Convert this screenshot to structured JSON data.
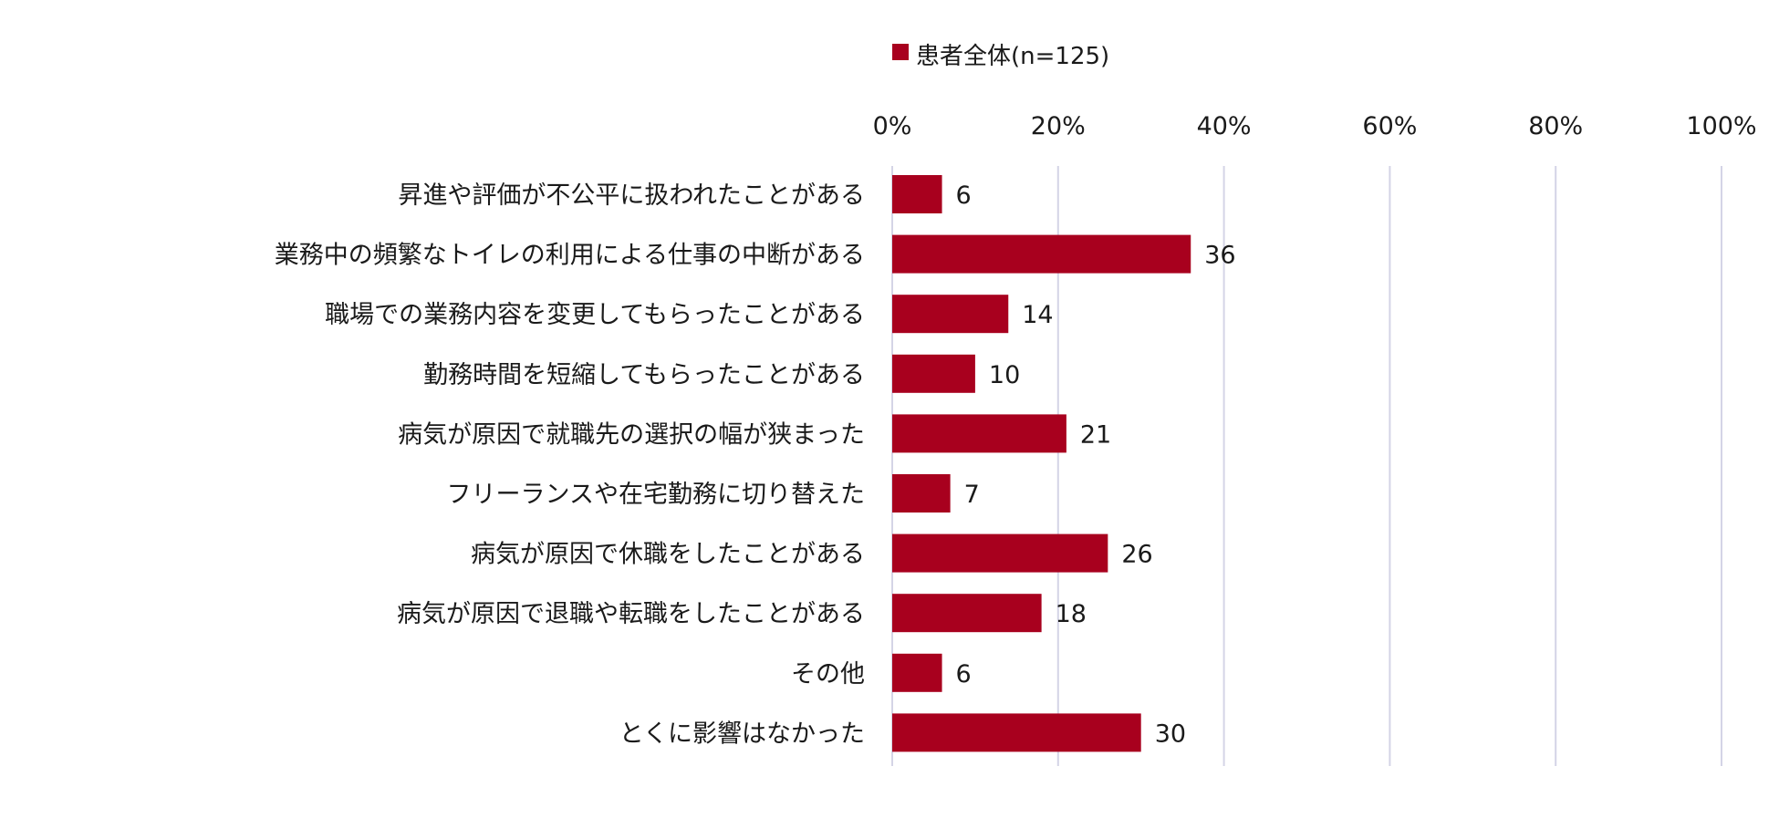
{
  "chart_data": {
    "type": "bar",
    "orientation": "horizontal",
    "categories": [
      "昇進や評価が不公平に扱われたことがある",
      "業務中の頻繁なトイレの利用による仕事の中断がある",
      "職場での業務内容を変更してもらったことがある",
      "勤務時間を短縮してもらったことがある",
      "病気が原因で就職先の選択の幅が狭まった",
      "フリーランスや在宅勤務に切り替えた",
      "病気が原因で休職をしたことがある",
      "病気が原因で退職や転職をしたことがある",
      "その他",
      "とくに影響はなかった"
    ],
    "series": [
      {
        "name": "患者全体(n=125)",
        "values": [
          6,
          36,
          14,
          10,
          21,
          7,
          26,
          18,
          6,
          30
        ],
        "color": "#A8001E"
      }
    ],
    "xlim": [
      0,
      100
    ],
    "xticks": [
      "0%",
      "20%",
      "40%",
      "60%",
      "80%",
      "100%"
    ],
    "tick_values": [
      0,
      20,
      40,
      60,
      80,
      100
    ],
    "grid": true,
    "legend_position": "top",
    "axis_position": "top"
  }
}
